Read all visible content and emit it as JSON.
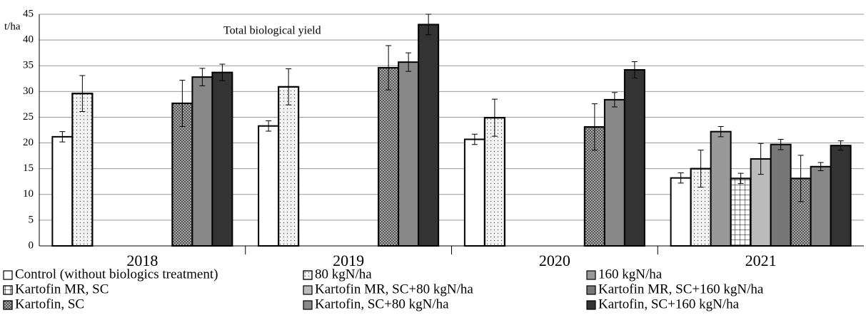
{
  "chart_data": {
    "type": "bar",
    "y_label": "t/ha",
    "annotation": "Total biological  yield",
    "categories": [
      "2018",
      "2019",
      "2020",
      "2021"
    ],
    "ylim": [
      0,
      45
    ],
    "yticks": [
      0,
      5,
      10,
      15,
      20,
      25,
      30,
      35,
      40,
      45
    ],
    "grid": true,
    "series": [
      {
        "name": "Control (without biologics treatment)",
        "color": "#ffffff",
        "values": [
          21.2,
          23.3,
          20.7,
          13.2
        ],
        "errors": [
          1.0,
          1.0,
          1.0,
          1.0
        ]
      },
      {
        "name": "80 kgN/ha",
        "color": "#f4f4f4",
        "values": [
          29.6,
          30.9,
          24.9,
          15.0
        ],
        "errors": [
          3.5,
          3.5,
          3.6,
          3.6
        ]
      },
      {
        "name": "160 kgN/ha",
        "color": "#999999",
        "values": [
          null,
          null,
          null,
          22.2
        ],
        "errors": [
          null,
          null,
          null,
          1.0
        ]
      },
      {
        "name": "Kartofin MR, SC",
        "color": "#ffffff",
        "values": [
          null,
          null,
          null,
          13.1
        ],
        "errors": [
          null,
          null,
          null,
          1.0
        ]
      },
      {
        "name": "Kartofin MR, SC+80 kgN/ha",
        "color": "#bbbbbb",
        "values": [
          null,
          null,
          null,
          16.9
        ],
        "errors": [
          null,
          null,
          null,
          3.0
        ]
      },
      {
        "name": "Kartofin MR, SC+160 kgN/ha",
        "color": "#777777",
        "values": [
          null,
          null,
          null,
          19.7
        ],
        "errors": [
          null,
          null,
          null,
          1.0
        ]
      },
      {
        "name": "Kartofin, SC",
        "color": "#aaaaaa",
        "values": [
          27.7,
          34.6,
          23.1,
          13.1
        ],
        "errors": [
          4.5,
          4.3,
          4.5,
          4.5
        ]
      },
      {
        "name": "Kartofin, SC+80 kgN/ha",
        "color": "#888888",
        "values": [
          32.8,
          35.7,
          28.4,
          15.4
        ],
        "errors": [
          1.7,
          1.8,
          1.4,
          0.8
        ]
      },
      {
        "name": "Kartofin, SC+160 kgN/ha",
        "color": "#333333",
        "values": [
          33.7,
          43.0,
          34.2,
          19.5
        ],
        "errors": [
          1.6,
          2.0,
          1.6,
          0.9
        ]
      }
    ]
  }
}
